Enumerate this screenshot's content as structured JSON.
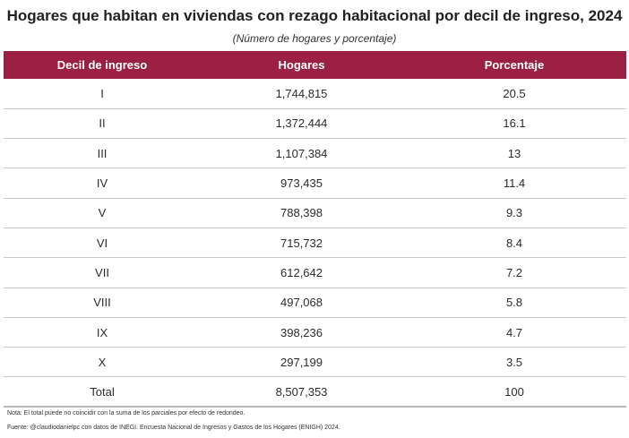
{
  "title": "Hogares que habitan en viviendas con rezago habitacional por decil de ingreso, 2024",
  "subtitle": "(Número de hogares y porcentaje)",
  "table": {
    "headers": [
      "Decil de ingreso",
      "Hogares",
      "Porcentaje"
    ],
    "rows": [
      [
        "I",
        "1,744,815",
        "20.5"
      ],
      [
        "II",
        "1,372,444",
        "16.1"
      ],
      [
        "III",
        "1,107,384",
        "13"
      ],
      [
        "IV",
        "973,435",
        "11.4"
      ],
      [
        "V",
        "788,398",
        "9.3"
      ],
      [
        "VI",
        "715,732",
        "8.4"
      ],
      [
        "VII",
        "612,642",
        "7.2"
      ],
      [
        "VIII",
        "497,068",
        "5.8"
      ],
      [
        "IX",
        "398,236",
        "4.7"
      ],
      [
        "X",
        "297,199",
        "3.5"
      ],
      [
        "Total",
        "8,507,353",
        "100"
      ]
    ]
  },
  "note": "Nota: El total puede no coincidir con la suma de los parciales por efecto de redondeo.",
  "source": "Fuente: @claudiodanielpc con datos de INEGI. Encuesta Nacional de Ingresos y Gastos de los Hogares (ENIGH) 2024.",
  "colors": {
    "header_bg": "#9b2043",
    "header_text": "#ffffff",
    "row_divider": "#c8c8c8"
  }
}
